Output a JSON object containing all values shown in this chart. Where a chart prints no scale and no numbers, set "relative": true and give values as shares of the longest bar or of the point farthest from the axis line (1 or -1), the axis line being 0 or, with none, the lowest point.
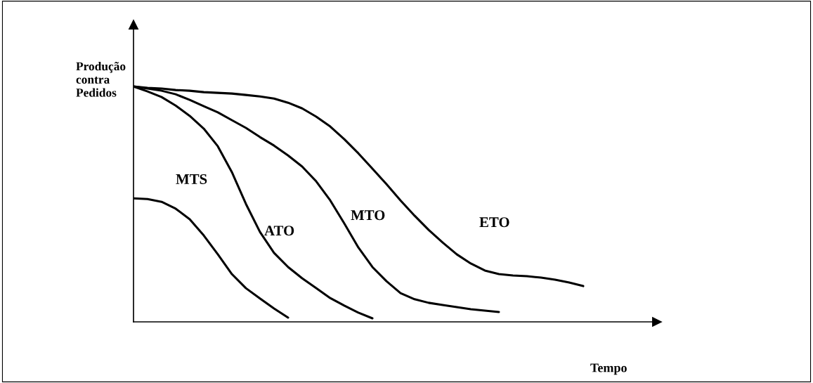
{
  "chart_data": {
    "type": "line",
    "relative": true,
    "xlabel": "Tempo",
    "ylabel": "Produção\ncontra\nPedidos",
    "categories": [
      null,
      null,
      null,
      null,
      null,
      null,
      null,
      null,
      null,
      null,
      null,
      null,
      null,
      null,
      null,
      null,
      null,
      null,
      null,
      null,
      null,
      null,
      null,
      null,
      null,
      null,
      null,
      null,
      null,
      null,
      null,
      null,
      null,
      null,
      null,
      null,
      null,
      null
    ],
    "series": [
      {
        "name": "MTS",
        "color": "#000000",
        "values": [
          0.525,
          0.522,
          0.51,
          0.481,
          0.436,
          0.367,
          0.287,
          0.203,
          0.143,
          0.099,
          0.057,
          0.018,
          null,
          null,
          null,
          null,
          null,
          null,
          null,
          null,
          null,
          null,
          null,
          null,
          null,
          null,
          null,
          null,
          null,
          null,
          null,
          null,
          null,
          null,
          null,
          null,
          null,
          null
        ]
      },
      {
        "name": "ATO",
        "color": "#000000",
        "values": [
          1.0,
          0.979,
          0.955,
          0.919,
          0.875,
          0.821,
          0.746,
          0.636,
          0.501,
          0.382,
          0.293,
          0.233,
          0.185,
          0.143,
          0.101,
          0.069,
          0.039,
          0.015,
          null,
          null,
          null,
          null,
          null,
          null,
          null,
          null,
          null,
          null,
          null,
          null,
          null,
          null,
          null,
          null,
          null,
          null,
          null,
          null
        ]
      },
      {
        "name": "MTO",
        "color": "#000000",
        "values": [
          1.0,
          0.991,
          0.982,
          0.967,
          0.943,
          0.916,
          0.89,
          0.857,
          0.824,
          0.785,
          0.749,
          0.707,
          0.66,
          0.597,
          0.516,
          0.418,
          0.316,
          0.233,
          0.173,
          0.122,
          0.096,
          0.081,
          0.072,
          0.063,
          0.054,
          0.048,
          0.042,
          null,
          null,
          null,
          null,
          null,
          null,
          null,
          null,
          null,
          null,
          null
        ]
      },
      {
        "name": "ETO",
        "color": "#000000",
        "values": [
          1.0,
          0.994,
          0.991,
          0.985,
          0.982,
          0.976,
          0.973,
          0.97,
          0.964,
          0.958,
          0.949,
          0.931,
          0.907,
          0.872,
          0.83,
          0.776,
          0.716,
          0.651,
          0.585,
          0.516,
          0.451,
          0.391,
          0.337,
          0.287,
          0.248,
          0.218,
          0.203,
          0.197,
          0.194,
          0.188,
          0.179,
          0.167,
          0.152,
          null,
          null,
          null,
          null,
          null
        ]
      }
    ]
  }
}
